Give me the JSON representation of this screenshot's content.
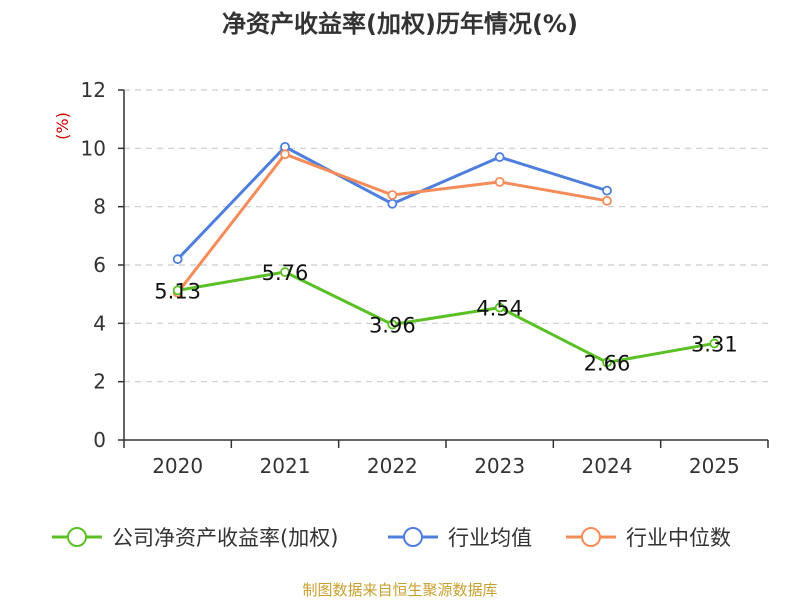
{
  "chart_data": {
    "type": "line",
    "title": "净资产收益率(加权)历年情况(%)",
    "ylabel": "(%)",
    "xlabel": "",
    "categories": [
      "2020",
      "2021",
      "2022",
      "2023",
      "2024",
      "2025"
    ],
    "ylim": [
      0,
      12
    ],
    "yticks": [
      0,
      2,
      4,
      6,
      8,
      10,
      12
    ],
    "grid": true,
    "legend_position": "bottom",
    "series": [
      {
        "name": "公司净资产收益率(加权)",
        "color": "#5bc025",
        "values": [
          5.13,
          5.76,
          3.96,
          4.54,
          2.66,
          3.31
        ],
        "data_labels": [
          "5.13",
          "5.76",
          "3.96",
          "4.54",
          "2.66",
          "3.31"
        ]
      },
      {
        "name": "行业均值",
        "color": "#4e7fdc",
        "values": [
          6.2,
          10.05,
          8.1,
          9.7,
          8.55,
          null
        ]
      },
      {
        "name": "行业中位数",
        "color": "#f48c5a",
        "values": [
          5.05,
          9.8,
          8.4,
          8.85,
          8.2,
          null
        ]
      }
    ],
    "source": "制图数据来自恒生聚源数据库",
    "source_color": "#c8a032",
    "ylabel_color": "#cc0000"
  }
}
